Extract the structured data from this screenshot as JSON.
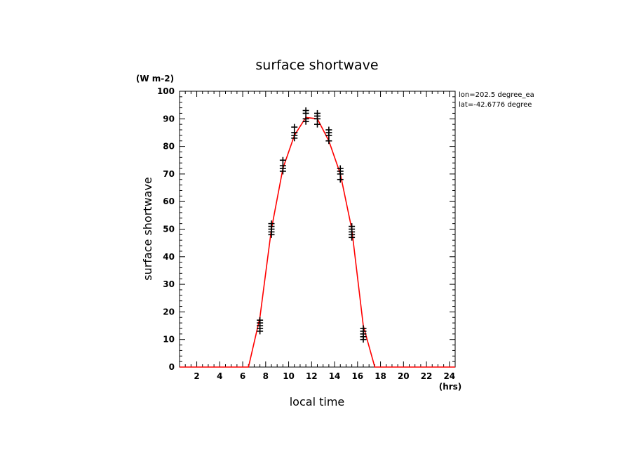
{
  "chart_data": {
    "type": "line",
    "title": "surface shortwave",
    "xlabel": "local time",
    "ylabel": "surface shortwave",
    "x_unit": "(hrs)",
    "y_unit": "(W m-2)",
    "annotations": [
      "lon=202.5 degree_ea",
      "lat=-42.6776 degree"
    ],
    "xlim": [
      0.5,
      24.5
    ],
    "ylim": [
      0,
      100
    ],
    "x_ticks": [
      2,
      4,
      6,
      8,
      10,
      12,
      14,
      16,
      18,
      20,
      22,
      24
    ],
    "y_ticks": [
      0,
      10,
      20,
      30,
      40,
      50,
      60,
      70,
      80,
      90,
      100
    ],
    "grid": false,
    "series": [
      {
        "color": "#ff0000",
        "style": "line",
        "x": [
          0.5,
          1.5,
          2.5,
          3.5,
          4.5,
          5.5,
          6.5,
          7.5,
          8.5,
          9.5,
          10.5,
          11.5,
          12.5,
          13.5,
          14.5,
          15.5,
          16.5,
          17.5,
          18.5,
          19.5,
          20.5,
          21.5,
          22.5,
          23.5,
          24.5
        ],
        "y": [
          0,
          0,
          0,
          0,
          0,
          0,
          0,
          18,
          50,
          72,
          84,
          90.5,
          90,
          82,
          70,
          50,
          15,
          0,
          0,
          0,
          0,
          0,
          0,
          0,
          0
        ]
      },
      {
        "color": "#000000",
        "style": "markers",
        "marker": "+",
        "x": [
          7.5,
          7.5,
          7.5,
          7.5,
          7.5,
          8.5,
          8.5,
          8.5,
          8.5,
          8.5,
          9.5,
          9.5,
          9.5,
          9.5,
          10.5,
          10.5,
          10.5,
          10.5,
          11.5,
          11.5,
          11.5,
          11.5,
          12.5,
          12.5,
          12.5,
          12.5,
          13.5,
          13.5,
          13.5,
          13.5,
          14.5,
          14.5,
          14.5,
          14.5,
          15.5,
          15.5,
          15.5,
          15.5,
          15.5,
          16.5,
          16.5,
          16.5,
          16.5,
          16.5
        ],
        "y": [
          13,
          14,
          15,
          16,
          17,
          48,
          49,
          50,
          51,
          52,
          71,
          72,
          73,
          75,
          83,
          84,
          85,
          87,
          89,
          90,
          92,
          93,
          88,
          90,
          91,
          92,
          82,
          84,
          85,
          86,
          68,
          70,
          71,
          72,
          47,
          48,
          49,
          50,
          51,
          10,
          11,
          12,
          13,
          14
        ]
      }
    ]
  }
}
